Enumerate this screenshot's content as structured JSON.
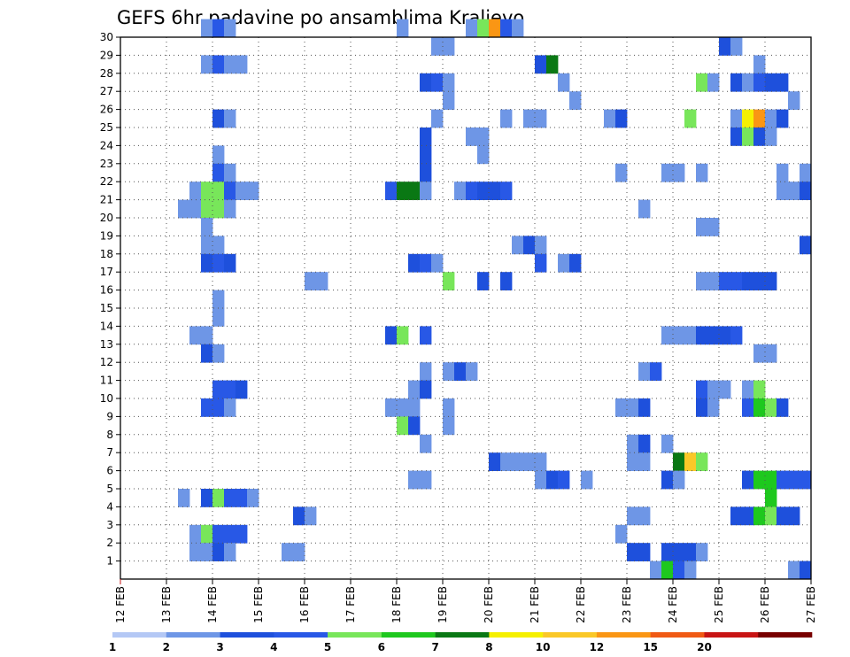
{
  "chart_data": {
    "type": "heatmap",
    "title": "GEFS 6hr padavine po ansamblima Kraljevo",
    "x_tick_labels": [
      "12 FEB",
      "13 FEB",
      "14 FEB",
      "15 FEB",
      "16 FEB",
      "17 FEB",
      "18 FEB",
      "19 FEB",
      "20 FEB",
      "21 FEB",
      "22 FEB",
      "23 FEB",
      "24 FEB",
      "25 FEB",
      "26 FEB",
      "27 FEB"
    ],
    "y_tick_labels": [
      "1",
      "2",
      "3",
      "4",
      "5",
      "6",
      "7",
      "8",
      "9",
      "10",
      "11",
      "12",
      "13",
      "14",
      "15",
      "16",
      "17",
      "18",
      "19",
      "20",
      "21",
      "22",
      "23",
      "24",
      "25",
      "26",
      "27",
      "28",
      "29",
      "30"
    ],
    "x_unit": "6-hour steps from 12 FEB 00Z",
    "xlim": [
      0,
      60
    ],
    "ylim": [
      0,
      30
    ],
    "grid": true,
    "colorbar": {
      "labels": [
        "1",
        "2",
        "3",
        "4",
        "5",
        "6",
        "7",
        "8",
        "10",
        "12",
        "15",
        "20"
      ],
      "colors": [
        "#b4c8f5",
        "#6e96e6",
        "#1e50dc",
        "#2858e6",
        "#78e65a",
        "#1ec81e",
        "#0a7814",
        "#f5f000",
        "#fac828",
        "#fa9614",
        "#f05a14",
        "#c81414",
        "#780000"
      ]
    },
    "legend": "bottom",
    "cells": [
      [
        7,
        30,
        1
      ],
      [
        8,
        30,
        3
      ],
      [
        9,
        30,
        1
      ],
      [
        24,
        30,
        1
      ],
      [
        30,
        30,
        1
      ],
      [
        31,
        30,
        4
      ],
      [
        32,
        30,
        9
      ],
      [
        33,
        30,
        3
      ],
      [
        34,
        30,
        1
      ],
      [
        27,
        29,
        1
      ],
      [
        28,
        29,
        1
      ],
      [
        52,
        29,
        2
      ],
      [
        53,
        29,
        1
      ],
      [
        7,
        28,
        1
      ],
      [
        8,
        28,
        3
      ],
      [
        9,
        28,
        1
      ],
      [
        10,
        28,
        1
      ],
      [
        36,
        28,
        2
      ],
      [
        37,
        28,
        6
      ],
      [
        55,
        28,
        1
      ],
      [
        26,
        27,
        2
      ],
      [
        27,
        27,
        3
      ],
      [
        28,
        27,
        1
      ],
      [
        38,
        27,
        1
      ],
      [
        50,
        27,
        4
      ],
      [
        51,
        27,
        1
      ],
      [
        53,
        27,
        2
      ],
      [
        54,
        27,
        1
      ],
      [
        55,
        27,
        3
      ],
      [
        56,
        27,
        2
      ],
      [
        57,
        27,
        2
      ],
      [
        28,
        26,
        1
      ],
      [
        39,
        26,
        1
      ],
      [
        58,
        26,
        1
      ],
      [
        8,
        25,
        2
      ],
      [
        9,
        25,
        1
      ],
      [
        27,
        25,
        1
      ],
      [
        33,
        25,
        1
      ],
      [
        35,
        25,
        1
      ],
      [
        36,
        25,
        1
      ],
      [
        42,
        25,
        1
      ],
      [
        43,
        25,
        2
      ],
      [
        49,
        25,
        4
      ],
      [
        53,
        25,
        1
      ],
      [
        54,
        25,
        7
      ],
      [
        55,
        25,
        9
      ],
      [
        56,
        25,
        1
      ],
      [
        57,
        25,
        2
      ],
      [
        26,
        24,
        2
      ],
      [
        30,
        24,
        1
      ],
      [
        31,
        24,
        1
      ],
      [
        53,
        24,
        2
      ],
      [
        54,
        24,
        4
      ],
      [
        55,
        24,
        2
      ],
      [
        56,
        24,
        1
      ],
      [
        8,
        23,
        1
      ],
      [
        26,
        23,
        2
      ],
      [
        31,
        23,
        1
      ],
      [
        8,
        22,
        3
      ],
      [
        9,
        22,
        1
      ],
      [
        26,
        22,
        2
      ],
      [
        43,
        22,
        1
      ],
      [
        47,
        22,
        1
      ],
      [
        48,
        22,
        1
      ],
      [
        50,
        22,
        1
      ],
      [
        57,
        22,
        1
      ],
      [
        59,
        22,
        1
      ],
      [
        6,
        21,
        1
      ],
      [
        7,
        21,
        4
      ],
      [
        8,
        21,
        4
      ],
      [
        9,
        21,
        3
      ],
      [
        10,
        21,
        1
      ],
      [
        11,
        21,
        1
      ],
      [
        23,
        21,
        3
      ],
      [
        24,
        21,
        6
      ],
      [
        25,
        21,
        6
      ],
      [
        26,
        21,
        1
      ],
      [
        29,
        21,
        1
      ],
      [
        30,
        21,
        3
      ],
      [
        31,
        21,
        2
      ],
      [
        32,
        21,
        2
      ],
      [
        33,
        21,
        3
      ],
      [
        57,
        21,
        1
      ],
      [
        58,
        21,
        1
      ],
      [
        59,
        21,
        2
      ],
      [
        5,
        20,
        1
      ],
      [
        6,
        20,
        1
      ],
      [
        7,
        20,
        4
      ],
      [
        8,
        20,
        4
      ],
      [
        9,
        20,
        1
      ],
      [
        45,
        20,
        1
      ],
      [
        7,
        19,
        1
      ],
      [
        50,
        19,
        1
      ],
      [
        51,
        19,
        1
      ],
      [
        7,
        18,
        1
      ],
      [
        8,
        18,
        1
      ],
      [
        34,
        18,
        1
      ],
      [
        35,
        18,
        2
      ],
      [
        36,
        18,
        1
      ],
      [
        59,
        18,
        2
      ],
      [
        7,
        17,
        2
      ],
      [
        8,
        17,
        3
      ],
      [
        9,
        17,
        2
      ],
      [
        25,
        17,
        2
      ],
      [
        26,
        17,
        3
      ],
      [
        27,
        17,
        1
      ],
      [
        36,
        17,
        3
      ],
      [
        38,
        17,
        1
      ],
      [
        39,
        17,
        2
      ],
      [
        16,
        16,
        1
      ],
      [
        17,
        16,
        1
      ],
      [
        28,
        16,
        4
      ],
      [
        31,
        16,
        2
      ],
      [
        33,
        16,
        2
      ],
      [
        50,
        16,
        1
      ],
      [
        51,
        16,
        1
      ],
      [
        52,
        16,
        3
      ],
      [
        53,
        16,
        3
      ],
      [
        54,
        16,
        2
      ],
      [
        55,
        16,
        2
      ],
      [
        56,
        16,
        2
      ],
      [
        8,
        15,
        1
      ],
      [
        8,
        14,
        1
      ],
      [
        6,
        13,
        1
      ],
      [
        7,
        13,
        1
      ],
      [
        23,
        13,
        2
      ],
      [
        24,
        13,
        4
      ],
      [
        26,
        13,
        3
      ],
      [
        47,
        13,
        1
      ],
      [
        48,
        13,
        1
      ],
      [
        49,
        13,
        1
      ],
      [
        50,
        13,
        2
      ],
      [
        51,
        13,
        2
      ],
      [
        52,
        13,
        2
      ],
      [
        53,
        13,
        3
      ],
      [
        7,
        12,
        2
      ],
      [
        8,
        12,
        1
      ],
      [
        55,
        12,
        1
      ],
      [
        56,
        12,
        1
      ],
      [
        26,
        11,
        1
      ],
      [
        28,
        11,
        1
      ],
      [
        29,
        11,
        2
      ],
      [
        30,
        11,
        1
      ],
      [
        45,
        11,
        1
      ],
      [
        46,
        11,
        3
      ],
      [
        8,
        10,
        3
      ],
      [
        9,
        10,
        3
      ],
      [
        10,
        10,
        2
      ],
      [
        25,
        10,
        1
      ],
      [
        26,
        10,
        2
      ],
      [
        50,
        10,
        3
      ],
      [
        51,
        10,
        1
      ],
      [
        52,
        10,
        1
      ],
      [
        54,
        10,
        1
      ],
      [
        55,
        10,
        4
      ],
      [
        7,
        9,
        3
      ],
      [
        8,
        9,
        3
      ],
      [
        9,
        9,
        1
      ],
      [
        23,
        9,
        1
      ],
      [
        24,
        9,
        1
      ],
      [
        25,
        9,
        1
      ],
      [
        28,
        9,
        1
      ],
      [
        43,
        9,
        1
      ],
      [
        44,
        9,
        1
      ],
      [
        45,
        9,
        2
      ],
      [
        50,
        9,
        2
      ],
      [
        51,
        9,
        1
      ],
      [
        54,
        9,
        3
      ],
      [
        55,
        9,
        5
      ],
      [
        56,
        9,
        4
      ],
      [
        57,
        9,
        2
      ],
      [
        24,
        8,
        4
      ],
      [
        25,
        8,
        2
      ],
      [
        28,
        8,
        1
      ],
      [
        26,
        7,
        1
      ],
      [
        44,
        7,
        1
      ],
      [
        45,
        7,
        2
      ],
      [
        47,
        7,
        1
      ],
      [
        32,
        6,
        2
      ],
      [
        33,
        6,
        1
      ],
      [
        34,
        6,
        1
      ],
      [
        35,
        6,
        1
      ],
      [
        36,
        6,
        1
      ],
      [
        44,
        6,
        1
      ],
      [
        45,
        6,
        1
      ],
      [
        48,
        6,
        6
      ],
      [
        49,
        6,
        8
      ],
      [
        50,
        6,
        4
      ],
      [
        25,
        5,
        1
      ],
      [
        26,
        5,
        1
      ],
      [
        36,
        5,
        1
      ],
      [
        37,
        5,
        2
      ],
      [
        38,
        5,
        3
      ],
      [
        40,
        5,
        1
      ],
      [
        47,
        5,
        2
      ],
      [
        48,
        5,
        1
      ],
      [
        54,
        5,
        2
      ],
      [
        55,
        5,
        5
      ],
      [
        56,
        5,
        5
      ],
      [
        57,
        5,
        3
      ],
      [
        58,
        5,
        3
      ],
      [
        59,
        5,
        3
      ],
      [
        5,
        4,
        1
      ],
      [
        7,
        4,
        2
      ],
      [
        8,
        4,
        4
      ],
      [
        9,
        4,
        3
      ],
      [
        10,
        4,
        3
      ],
      [
        11,
        4,
        1
      ],
      [
        56,
        4,
        5
      ],
      [
        15,
        3,
        2
      ],
      [
        16,
        3,
        1
      ],
      [
        44,
        3,
        1
      ],
      [
        45,
        3,
        1
      ],
      [
        53,
        3,
        2
      ],
      [
        54,
        3,
        2
      ],
      [
        55,
        3,
        5
      ],
      [
        56,
        3,
        4
      ],
      [
        57,
        3,
        2
      ],
      [
        58,
        3,
        2
      ],
      [
        6,
        2,
        1
      ],
      [
        7,
        2,
        4
      ],
      [
        8,
        2,
        3
      ],
      [
        9,
        2,
        3
      ],
      [
        10,
        2,
        3
      ],
      [
        43,
        2,
        1
      ],
      [
        6,
        1,
        1
      ],
      [
        7,
        1,
        1
      ],
      [
        8,
        1,
        2
      ],
      [
        9,
        1,
        1
      ],
      [
        14,
        1,
        1
      ],
      [
        15,
        1,
        1
      ],
      [
        44,
        1,
        2
      ],
      [
        45,
        1,
        2
      ],
      [
        47,
        1,
        2
      ],
      [
        48,
        1,
        2
      ],
      [
        49,
        1,
        2
      ],
      [
        50,
        1,
        1
      ],
      [
        46,
        0,
        1
      ],
      [
        47,
        0,
        5
      ],
      [
        48,
        0,
        3
      ],
      [
        49,
        0,
        1
      ],
      [
        58,
        0,
        1
      ],
      [
        59,
        0,
        2
      ]
    ]
  }
}
